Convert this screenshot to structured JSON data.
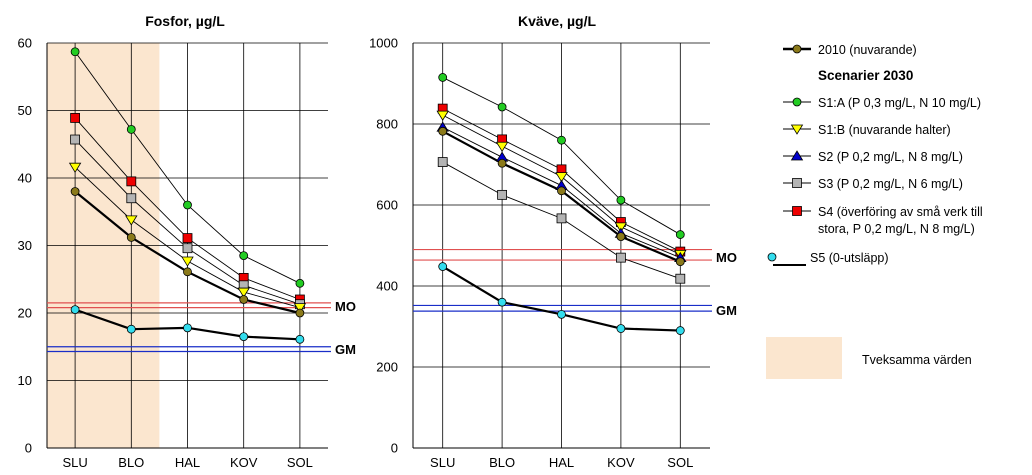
{
  "colors": {
    "baseline": "#8b7a1a",
    "s1a": "#22cc22",
    "s1b": "#ffff00",
    "s2": "#0000cc",
    "s3": "#b4b4b4",
    "s4": "#ee0000",
    "s5": "#33ddee",
    "mo": "#e05050",
    "gm": "#1a2ec8",
    "doubtful": "#fbe6cf"
  },
  "legend": {
    "baseline": "2010 (nuvarande)",
    "heading": "Scenarier 2030",
    "s1a": "S1:A (P 0,3 mg/L, N 10 mg/L)",
    "s1b": "S1:B (nuvarande halter)",
    "s2": "S2 (P 0,2 mg/L, N 8 mg/L)",
    "s3": "S3 (P 0,2 mg/L, N 6 mg/L)",
    "s4_line1": "S4 (överföring av små verk till",
    "s4_line2": "stora, P 0,2 mg/L, N 8 mg/L)",
    "s5": "S5 (0-utsläpp)",
    "doubtful": "Tveksamma värden"
  },
  "chart_data": [
    {
      "type": "line",
      "title": "Fosfor, µg/L",
      "categories": [
        "SLU",
        "BLO",
        "HAL",
        "KOV",
        "SOL"
      ],
      "ylim": [
        0,
        60
      ],
      "yticks": [
        0,
        10,
        20,
        30,
        40,
        50,
        60
      ],
      "grid": true,
      "shaded_categories": [
        "SLU",
        "BLO"
      ],
      "reference_lines": [
        {
          "label": "MO",
          "values": [
            20.8,
            21.5
          ]
        },
        {
          "label": "GM",
          "values": [
            14.3,
            15.0
          ]
        }
      ],
      "series": [
        {
          "key": "s1a",
          "name": "S1:A (P 0,3 mg/L, N 10 mg/L)",
          "values": [
            58.7,
            47.2,
            36.0,
            28.5,
            24.4
          ]
        },
        {
          "key": "s4",
          "name": "S4 (överföring av små verk till stora, P 0,2 mg/L, N 8 mg/L)",
          "values": [
            48.9,
            39.5,
            31.1,
            25.2,
            22.0
          ]
        },
        {
          "key": "s3",
          "name": "S3 (P 0,2 mg/L, N 6 mg/L)",
          "values": [
            45.7,
            37.0,
            29.6,
            24.1,
            21.3
          ]
        },
        {
          "key": "s1b",
          "name": "S1:B (nuvarande halter)",
          "values": [
            41.6,
            33.8,
            27.7,
            23.1,
            20.8
          ]
        },
        {
          "key": "baseline",
          "name": "2010 (nuvarande)",
          "values": [
            38.0,
            31.2,
            26.1,
            22.0,
            20.0
          ]
        },
        {
          "key": "s5",
          "name": "S5 (0-utsläpp)",
          "values": [
            20.5,
            17.6,
            17.8,
            16.5,
            16.1
          ]
        }
      ]
    },
    {
      "type": "line",
      "title": "Kväve, µg/L",
      "categories": [
        "SLU",
        "BLO",
        "HAL",
        "KOV",
        "SOL"
      ],
      "ylim": [
        0,
        1000
      ],
      "yticks": [
        0,
        200,
        400,
        600,
        800,
        1000
      ],
      "grid": true,
      "reference_lines": [
        {
          "label": "MO",
          "values": [
            464,
            490
          ]
        },
        {
          "label": "GM",
          "values": [
            338,
            352
          ]
        }
      ],
      "series": [
        {
          "key": "s1a",
          "name": "S1:A (P 0,3 mg/L, N 10 mg/L)",
          "values": [
            915,
            842,
            760,
            612,
            527
          ]
        },
        {
          "key": "s4",
          "name": "S4 (överföring av små verk till stora, P 0,2 mg/L, N 8 mg/L)",
          "values": [
            838,
            762,
            688,
            558,
            485
          ]
        },
        {
          "key": "s1b",
          "name": "S1:B (nuvarande halter)",
          "values": [
            822,
            745,
            670,
            546,
            478
          ]
        },
        {
          "key": "s2",
          "name": "S2 (P 0,2 mg/L, N 8 mg/L)",
          "values": [
            792,
            718,
            648,
            530,
            470
          ]
        },
        {
          "key": "baseline",
          "name": "2010 (nuvarande)",
          "values": [
            782,
            703,
            635,
            522,
            460
          ]
        },
        {
          "key": "s3",
          "name": "S3 (P 0,2 mg/L, N 6 mg/L)",
          "values": [
            706,
            625,
            567,
            470,
            418
          ]
        },
        {
          "key": "s5",
          "name": "S5 (0-utsläpp)",
          "values": [
            448,
            360,
            330,
            295,
            290
          ]
        }
      ]
    }
  ]
}
